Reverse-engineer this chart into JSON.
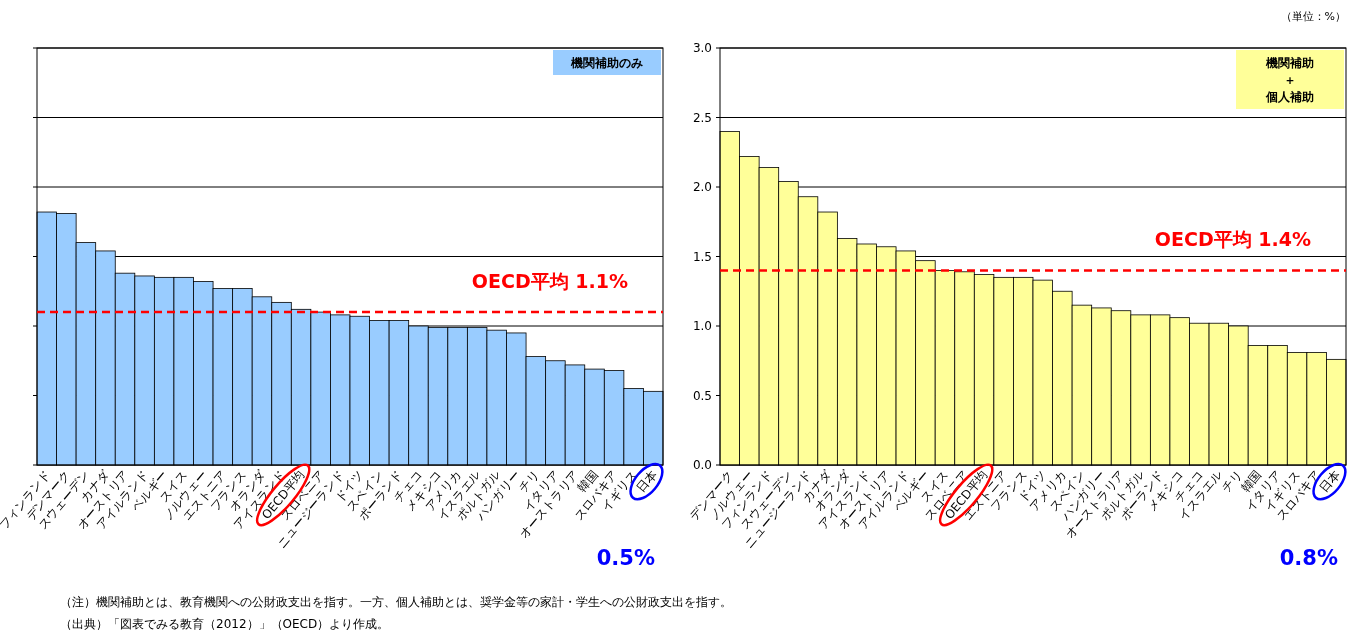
{
  "chart_data": [
    {
      "type": "bar",
      "title": "機関補助のみ",
      "color": "#99ccff",
      "categories": [
        "フィンランド",
        "デンマーク",
        "スウェーデン",
        "カナダ",
        "オーストリア",
        "アイルランド",
        "ベルギー",
        "スイス",
        "ノルウェー",
        "エストニア",
        "フランス",
        "オランダ",
        "アイスランド",
        "OECD平均",
        "スロベニア",
        "ニュージーランド",
        "ドイツ",
        "スペイン",
        "ポーランド",
        "チェコ",
        "メキシコ",
        "アメリカ",
        "イスラエル",
        "ポルトガル",
        "ハンガリー",
        "チリ",
        "イタリア",
        "オーストラリア",
        "韓国",
        "スロバキア",
        "イギリス",
        "日本"
      ],
      "values": [
        1.82,
        1.81,
        1.6,
        1.54,
        1.38,
        1.36,
        1.35,
        1.35,
        1.32,
        1.27,
        1.27,
        1.21,
        1.17,
        1.12,
        1.1,
        1.08,
        1.07,
        1.04,
        1.04,
        1.0,
        0.99,
        0.99,
        0.99,
        0.97,
        0.95,
        0.78,
        0.75,
        0.72,
        0.69,
        0.68,
        0.55,
        0.53
      ],
      "ylim": [
        0,
        3
      ],
      "yticks": [
        0,
        0.5,
        1,
        1.5,
        2,
        2.5,
        3
      ],
      "tick_labels": "x",
      "grid": "y",
      "ref_lines": [
        {
          "axis": "y",
          "value": 1.1,
          "label": "OECD平均  1.1%",
          "color": "#ff0000",
          "line_style": "dashed"
        }
      ],
      "annotations": [
        "0.5%",
        "（注）機関補助とは、教育機関への公財政支出を指す。一方、個人補助とは、奨学金等の家計・学生への公財政支出を指す。",
        "（出典）「図表でみる教育（2012）」（OECD）より作成。"
      ]
    },
    {
      "type": "bar",
      "title": "機関補助＋個人補助",
      "color": "#ffff99",
      "categories": [
        "デンマーク",
        "ノルウェー",
        "フィンランド",
        "スウェーデン",
        "ニュージーランド",
        "カナダ",
        "オランダ",
        "アイスランド",
        "オーストリア",
        "アイルランド",
        "ベルギー",
        "スイス",
        "スロベニア",
        "OECD平均",
        "エストニア",
        "フランス",
        "ドイツ",
        "アメリカ",
        "スペイン",
        "ハンガリー",
        "オーストラリア",
        "ポルトガル",
        "ポーランド",
        "メキシコ",
        "チェコ",
        "イスラエル",
        "チリ",
        "韓国",
        "イタリア",
        "イギリス",
        "スロバキア",
        "日本"
      ],
      "values": [
        2.4,
        2.22,
        2.14,
        2.04,
        1.93,
        1.82,
        1.63,
        1.59,
        1.57,
        1.54,
        1.47,
        1.4,
        1.39,
        1.37,
        1.35,
        1.35,
        1.33,
        1.25,
        1.15,
        1.13,
        1.11,
        1.08,
        1.08,
        1.06,
        1.02,
        1.02,
        1.0,
        0.86,
        0.86,
        0.81,
        0.81,
        0.76
      ],
      "ylim": [
        0,
        3
      ],
      "yticks": [
        {
          "value": 0,
          "label": "0.0"
        },
        {
          "value": 0.5,
          "label": "0.5"
        },
        {
          "value": 1,
          "label": "1.0"
        },
        {
          "value": 1.5,
          "label": "1.5"
        },
        {
          "value": 2,
          "label": "2.0"
        },
        {
          "value": 2.5,
          "label": "2.5"
        },
        {
          "value": 3,
          "label": "3.0"
        }
      ],
      "grid": "y",
      "ref_lines": [
        {
          "axis": "y",
          "value": 1.4,
          "label": "OECD平均  1.4%",
          "color": "#ff0000",
          "line_style": "dashed"
        }
      ],
      "annotations": [
        "0.8%",
        "（単位：%）"
      ]
    }
  ]
}
